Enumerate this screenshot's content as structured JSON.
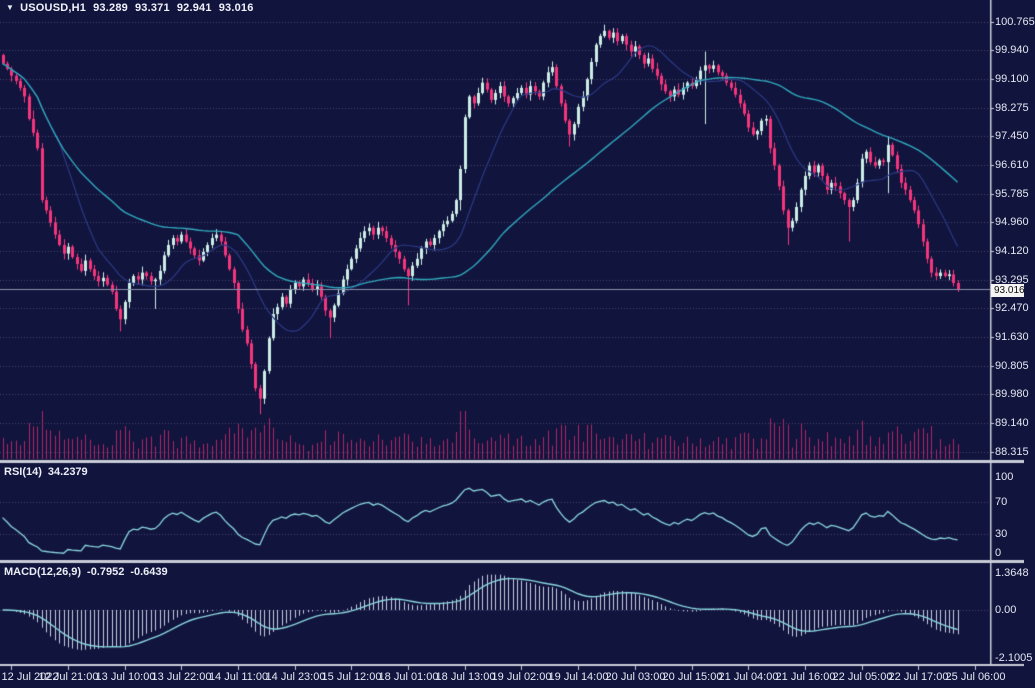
{
  "header": {
    "dropdown_icon": "▼",
    "symbol": "USOUSD,H1",
    "open": "93.289",
    "high": "93.371",
    "low": "92.941",
    "close": "93.016"
  },
  "panels": {
    "rsi": {
      "label": "RSI(14)",
      "value": "34.2379",
      "scale_labels": [
        "100",
        "70",
        "30",
        "0"
      ],
      "scale_values": [
        100,
        70,
        30,
        0
      ],
      "gridlines": [
        70,
        30
      ]
    },
    "macd": {
      "label": "MACD(12,26,9)",
      "value_main": "-0.7952",
      "value_signal": "-0.6439",
      "scale_labels": [
        "1.3648",
        "0.00",
        "-2.1005"
      ],
      "scale_values": [
        1.3648,
        0,
        -2.1005
      ],
      "gridlines": [
        0
      ]
    }
  },
  "price_axis": {
    "labels": [
      "100.765",
      "99.940",
      "99.100",
      "98.275",
      "97.450",
      "96.610",
      "95.785",
      "94.960",
      "94.120",
      "93.295",
      "92.470",
      "91.630",
      "90.805",
      "89.980",
      "89.140",
      "88.315"
    ],
    "values": [
      100.765,
      99.94,
      99.1,
      98.275,
      97.45,
      96.61,
      95.785,
      94.96,
      94.12,
      93.295,
      92.47,
      91.63,
      90.805,
      89.98,
      89.14,
      88.315
    ],
    "current": "93.016",
    "current_value": 93.016
  },
  "time_axis": {
    "labels": [
      "12 Jul 2022",
      "12 Jul 21:00",
      "13 Jul 10:00",
      "13 Jul 22:00",
      "14 Jul 11:00",
      "14 Jul 23:00",
      "15 Jul 12:00",
      "18 Jul 01:00",
      "18 Jul 13:00",
      "19 Jul 02:00",
      "19 Jul 14:00",
      "20 Jul 03:00",
      "20 Jul 15:00",
      "21 Jul 04:00",
      "21 Jul 16:00",
      "22 Jul 05:00",
      "22 Jul 17:00",
      "25 Jul 06:00"
    ]
  },
  "colors": {
    "background": "#11143d",
    "bull": "#cceee6",
    "bear": "#f5357c",
    "volume": "#b02563",
    "ma_slow": "#31a8bd",
    "ma_fast": "#2c3a85",
    "indicator_line": "#8ad6de",
    "histogram": "#c9cde0",
    "grid": "#696e8e",
    "separator": "#c9ccd8",
    "price_line": "#8a92a8",
    "text": "#e4e7f0"
  },
  "chart_data": {
    "type": "candlestick+indicators",
    "symbol": "USOUSD",
    "timeframe": "H1",
    "title": "USOUSD,H1 93.289 93.371 92.941 93.016",
    "ylim": [
      88.315,
      100.765
    ],
    "rsi_ylim": [
      0,
      100
    ],
    "macd_ylim": [
      -2.1005,
      1.3648
    ],
    "rsi_last": 34.2379,
    "macd_last_main": -0.7952,
    "macd_last_signal": -0.6439,
    "current_price": 93.016,
    "total_slots": 227,
    "first_tick_slot": 2,
    "tick_every": 13,
    "indicators": {
      "ma_fast_period": 14,
      "ma_slow_period": 55,
      "rsi_period": 14,
      "macd": [
        12,
        26,
        9
      ]
    },
    "closes": [
      99.55,
      99.4,
      99.2,
      99.05,
      98.85,
      98.6,
      97.95,
      97.55,
      97.1,
      95.6,
      95.3,
      94.95,
      94.6,
      94.3,
      94.05,
      94.25,
      93.95,
      93.75,
      93.55,
      93.85,
      93.6,
      93.4,
      93.25,
      93.35,
      93.15,
      92.95,
      92.45,
      92.15,
      92.65,
      93.2,
      93.4,
      93.3,
      93.5,
      93.4,
      93.25,
      93.3,
      93.55,
      94.0,
      94.3,
      94.5,
      94.4,
      94.6,
      94.4,
      94.2,
      94.0,
      93.85,
      94.1,
      94.3,
      94.5,
      94.6,
      94.4,
      94.0,
      93.6,
      93.2,
      92.45,
      91.85,
      91.45,
      90.85,
      90.15,
      89.85,
      90.65,
      91.6,
      92.3,
      92.5,
      92.8,
      92.6,
      93.0,
      93.2,
      93.1,
      93.3,
      93.2,
      93.0,
      93.1,
      92.8,
      92.4,
      92.2,
      92.55,
      92.9,
      93.3,
      93.6,
      93.9,
      94.2,
      94.5,
      94.7,
      94.8,
      94.6,
      94.8,
      94.7,
      94.5,
      94.3,
      94.1,
      93.9,
      93.6,
      93.4,
      93.7,
      93.9,
      94.2,
      94.4,
      94.3,
      94.5,
      94.7,
      94.9,
      95.0,
      95.2,
      95.6,
      96.5,
      98.0,
      98.6,
      98.4,
      98.7,
      99.0,
      98.8,
      98.5,
      98.7,
      98.9,
      98.6,
      98.4,
      98.55,
      98.7,
      98.85,
      98.65,
      98.9,
      98.75,
      98.6,
      99.0,
      99.3,
      99.45,
      98.9,
      98.4,
      97.9,
      97.5,
      97.8,
      98.3,
      98.6,
      99.1,
      99.6,
      100.1,
      100.35,
      100.5,
      100.3,
      100.45,
      100.2,
      100.35,
      100.1,
      99.9,
      100.05,
      99.8,
      99.55,
      99.7,
      99.4,
      99.2,
      98.95,
      98.75,
      98.6,
      98.8,
      98.65,
      98.85,
      99.0,
      98.9,
      99.1,
      99.35,
      99.5,
      99.4,
      99.5,
      99.3,
      99.2,
      99.0,
      98.85,
      98.65,
      98.4,
      98.1,
      97.7,
      97.5,
      97.6,
      97.9,
      97.95,
      97.1,
      96.6,
      96.0,
      95.3,
      94.8,
      95.0,
      95.4,
      95.9,
      96.3,
      96.6,
      96.4,
      96.6,
      96.3,
      95.9,
      96.1,
      96.0,
      95.8,
      95.6,
      95.4,
      95.6,
      96.1,
      96.8,
      97.0,
      96.7,
      96.6,
      96.75,
      96.7,
      97.2,
      96.9,
      96.5,
      96.1,
      95.9,
      95.6,
      95.3,
      94.9,
      94.4,
      93.9,
      93.5,
      93.4,
      93.5,
      93.4,
      93.45,
      93.2,
      93.02
    ],
    "wick_overrides": {
      "7": [
        0.25,
        0.1
      ],
      "27": [
        0.1,
        0.35
      ],
      "35": [
        0.05,
        0.8
      ],
      "59": [
        0.1,
        0.45
      ],
      "75": [
        0.05,
        0.6
      ],
      "93": [
        0.05,
        0.85
      ],
      "105": [
        0.1,
        0.3
      ],
      "130": [
        0.05,
        0.35
      ],
      "138": [
        0.18,
        0.05
      ],
      "161": [
        0.4,
        1.55
      ],
      "180": [
        0.05,
        0.5
      ],
      "194": [
        0.05,
        1.0
      ],
      "203": [
        0.25,
        0.9
      ],
      "219": [
        0.08,
        0.08
      ]
    }
  }
}
